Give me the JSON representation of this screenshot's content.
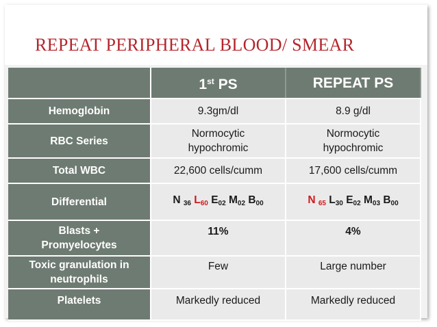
{
  "slide": {
    "title": "REPEAT PERIPHERAL BLOOD/ SMEAR"
  },
  "table": {
    "header": {
      "col1_main": "1",
      "col1_sup": "st",
      "col1_rest": " PS",
      "col2": "REPEAT PS"
    },
    "rows": [
      {
        "label": "Hemoglobin",
        "first": "9.3gm/dl",
        "repeat": "8.9 g/dl"
      },
      {
        "label": "RBC Series",
        "first_line1": "Normocytic",
        "first_line2": "hypochromic",
        "repeat_line1": "Normocytic",
        "repeat_line2": "hypochromic"
      },
      {
        "label": "Total WBC",
        "first": "22,600 cells/cumm",
        "repeat": "17,600 cells/cumm"
      },
      {
        "label": "Differential",
        "first": {
          "n": "N",
          "n_sub": "36",
          "l": "L",
          "l_sub": "60",
          "e": "E",
          "e_sub": "02",
          "m": "M",
          "m_sub": "02",
          "b": "B",
          "b_sub": "00"
        },
        "repeat": {
          "n": "N",
          "n_sub": "65",
          "l": "L",
          "l_sub": "30",
          "e": "E",
          "e_sub": "02",
          "m": "M",
          "m_sub": "03",
          "b": "B",
          "b_sub": "00"
        }
      },
      {
        "label_line1": "Blasts +",
        "label_line2": "Promyelocytes",
        "first": "11%",
        "repeat": "4%"
      },
      {
        "label_line1": "Toxic granulation in",
        "label_line2": "neutrophils",
        "first": "Few",
        "repeat": "Large number"
      },
      {
        "label": "Platelets",
        "first": "Markedly reduced",
        "repeat": "Markedly reduced"
      }
    ]
  },
  "colors": {
    "title": "#b5252b",
    "header_bg": "#6e7b72",
    "cell_bg": "#eaeaea",
    "highlight": "#d0191b"
  }
}
